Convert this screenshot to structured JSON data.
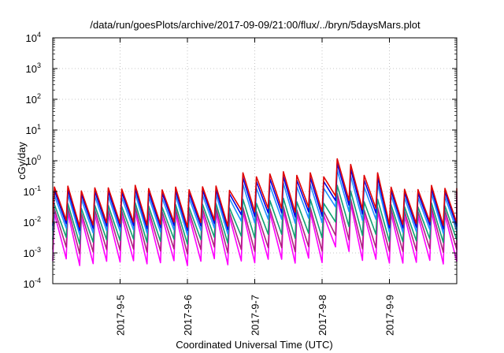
{
  "chart_data": {
    "type": "line",
    "title": "/data/run/goesPlots/archive/2017-09-09/21:00/flux/../bryn/5daysMars.plot",
    "xlabel": "Coordinated Universal Time (UTC)",
    "ylabel": "cGy/day",
    "yscale": "log",
    "ylim": [
      0.0001,
      10000
    ],
    "xlim": [
      "2017-09-04T00:00",
      "2017-09-10T00:00"
    ],
    "y_ticks": [
      {
        "base": "10",
        "exp": "-4"
      },
      {
        "base": "10",
        "exp": "-3"
      },
      {
        "base": "10",
        "exp": "-2"
      },
      {
        "base": "10",
        "exp": "-1"
      },
      {
        "base": "10",
        "exp": "0"
      },
      {
        "base": "10",
        "exp": "1"
      },
      {
        "base": "10",
        "exp": "2"
      },
      {
        "base": "10",
        "exp": "3"
      },
      {
        "base": "10",
        "exp": "4"
      }
    ],
    "x_ticks": [
      "2017-9-5",
      "2017-9-6",
      "2017-9-7",
      "2017-9-8",
      "2017-9-9"
    ],
    "grid": true,
    "legend": "none",
    "sawtooth_period_hours": 4.8,
    "events": [
      {
        "time": "2017-09-06T15:00",
        "type": "step"
      },
      {
        "time": "2017-09-08T01:00",
        "type": "spike",
        "peak_red": 2.0,
        "decay_end": "2017-09-08T14:00"
      }
    ],
    "series": [
      {
        "color": "#e00000",
        "peak": 0.13,
        "trough": 0.009,
        "elevated_peak": 0.4
      },
      {
        "color": "#0000e6",
        "peak": 0.1,
        "trough": 0.007,
        "elevated_peak": 0.28
      },
      {
        "color": "#1e90ff",
        "peak": 0.07,
        "trough": 0.005,
        "elevated_peak": 0.17
      },
      {
        "color": "#10a070",
        "peak": 0.035,
        "trough": 0.0025,
        "elevated_peak": 0.055
      },
      {
        "color": "#b02080",
        "peak": 0.025,
        "trough": 0.0012,
        "elevated_peak": 0.03
      },
      {
        "color": "#ff00ff",
        "peak": 0.018,
        "trough": 0.0005,
        "elevated_peak": 0.022
      }
    ]
  }
}
